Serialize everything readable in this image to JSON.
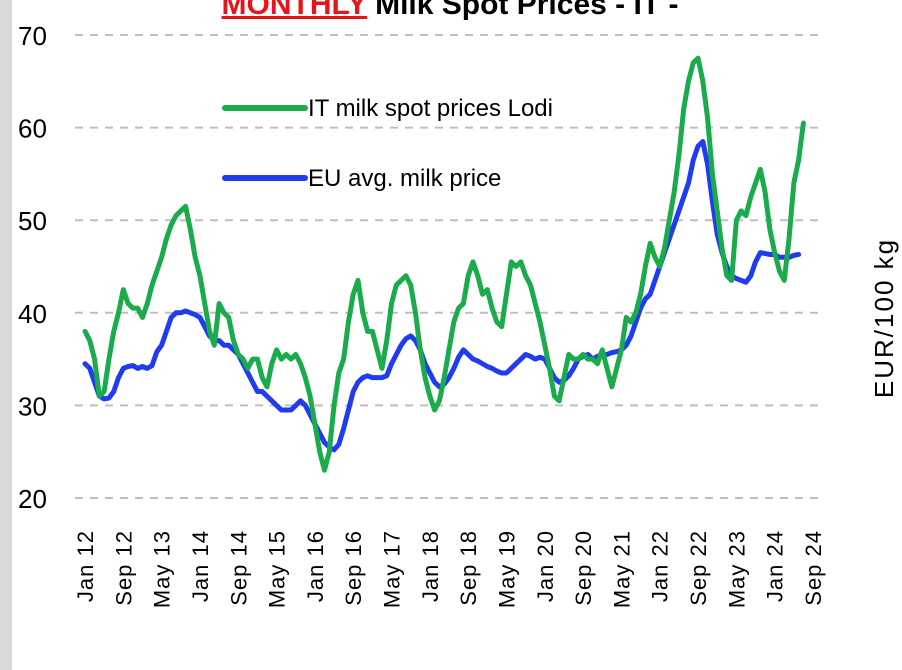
{
  "chart_data": {
    "type": "line",
    "title_highlight": "MONTHLY",
    "title": "Milk Spot Prices - IT -",
    "y_label": "EUR/100 kg",
    "ylim": [
      20,
      70
    ],
    "yticks": [
      20,
      30,
      40,
      50,
      60,
      70
    ],
    "grid": true,
    "categories": [
      "Jan 12",
      null,
      null,
      null,
      null,
      null,
      null,
      null,
      "Sep 12",
      null,
      null,
      null,
      null,
      null,
      null,
      null,
      "May 13",
      null,
      null,
      null,
      null,
      null,
      null,
      null,
      "Jan 14",
      null,
      null,
      null,
      null,
      null,
      null,
      null,
      "Sep 14",
      null,
      null,
      null,
      null,
      null,
      null,
      null,
      "May 15",
      null,
      null,
      null,
      null,
      null,
      null,
      null,
      "Jan 16",
      null,
      null,
      null,
      null,
      null,
      null,
      null,
      "Sep 16",
      null,
      null,
      null,
      null,
      null,
      null,
      null,
      "May 17",
      null,
      null,
      null,
      null,
      null,
      null,
      null,
      "Jan 18",
      null,
      null,
      null,
      null,
      null,
      null,
      null,
      "Sep 18",
      null,
      null,
      null,
      null,
      null,
      null,
      null,
      "May 19",
      null,
      null,
      null,
      null,
      null,
      null,
      null,
      "Jan 20",
      null,
      null,
      null,
      null,
      null,
      null,
      null,
      "Sep 20",
      null,
      null,
      null,
      null,
      null,
      null,
      null,
      "May 21",
      null,
      null,
      null,
      null,
      null,
      null,
      null,
      "Jan 22",
      null,
      null,
      null,
      null,
      null,
      null,
      null,
      "Sep 22",
      null,
      null,
      null,
      null,
      null,
      null,
      null,
      "May 23",
      null,
      null,
      null,
      null,
      null,
      null,
      null,
      "Jan 24",
      null,
      null,
      null,
      null,
      null,
      null,
      null,
      "Sep 24"
    ],
    "series": [
      {
        "name": "IT milk spot prices Lodi",
        "color": "#1aab4b",
        "values": [
          38,
          37,
          35,
          31,
          31.5,
          35,
          38,
          40,
          42.5,
          41,
          40.5,
          40.5,
          39.5,
          41,
          43,
          44.5,
          46,
          48,
          49.5,
          50.5,
          51,
          51.5,
          49,
          46,
          44,
          41,
          38,
          36.5,
          41,
          40,
          39.5,
          37,
          35.5,
          35,
          34,
          35,
          35,
          33,
          32,
          34.5,
          36,
          35,
          35.5,
          35,
          35.5,
          34.5,
          33,
          31,
          28,
          25,
          23,
          25,
          30,
          33.5,
          35,
          39,
          42,
          43.5,
          40,
          38,
          38,
          36,
          34,
          37,
          41,
          43,
          43.5,
          44,
          43,
          40,
          36,
          33,
          31,
          29.5,
          30.5,
          33,
          36,
          39,
          40.5,
          41,
          44,
          45.5,
          44,
          42,
          42.5,
          40.5,
          39,
          38.5,
          42,
          45.5,
          45,
          45.5,
          44,
          43,
          41,
          39,
          36.5,
          34,
          31,
          30.5,
          33,
          35.5,
          35,
          35,
          35.5,
          35,
          35,
          34.5,
          36,
          34,
          32,
          34,
          36,
          39.5,
          39,
          40,
          42,
          45,
          47.5,
          46,
          45,
          47,
          50,
          53,
          57,
          62,
          65,
          67,
          67.5,
          65,
          61,
          55,
          51,
          47,
          44,
          43.5,
          50,
          51,
          50.5,
          52.5,
          54,
          55.5,
          53,
          49,
          46.5,
          44.5,
          43.5,
          48,
          54,
          56.5,
          60.5,
          null,
          null
        ]
      },
      {
        "name": "EU avg. milk price",
        "color": "#1f3cf0",
        "values": [
          34.5,
          34,
          32.5,
          31,
          30.7,
          30.8,
          31.5,
          33,
          34,
          34.2,
          34.3,
          34,
          34.2,
          34,
          34.3,
          35.8,
          36.5,
          38,
          39.5,
          40,
          40,
          40.2,
          40,
          39.8,
          39.5,
          38.5,
          37.5,
          37,
          37,
          36.5,
          36.5,
          36,
          35.5,
          34.5,
          33.5,
          32.5,
          31.5,
          31.5,
          31,
          30.5,
          30,
          29.5,
          29.5,
          29.5,
          30,
          30.5,
          30,
          29,
          28,
          27,
          26,
          25.5,
          25.2,
          25.8,
          27.5,
          29.5,
          31.5,
          32.5,
          33,
          33.2,
          33,
          33,
          33,
          33.2,
          34.5,
          35.5,
          36.5,
          37.2,
          37.5,
          37,
          36,
          34.5,
          33.5,
          32.5,
          32,
          32.3,
          33,
          34,
          35.2,
          36,
          35.5,
          35,
          34.8,
          34.5,
          34.2,
          34,
          33.7,
          33.5,
          33.5,
          34,
          34.5,
          35,
          35.5,
          35.3,
          35,
          35.2,
          35,
          34,
          33,
          32.5,
          32.7,
          33.2,
          34,
          35,
          35.3,
          35.5,
          35,
          35.3,
          35.5,
          35.5,
          35.7,
          35.8,
          36,
          36.5,
          37.5,
          39,
          40.5,
          41.5,
          42,
          43.5,
          45,
          46.5,
          48,
          49.5,
          51,
          52.5,
          54,
          56.5,
          58,
          58.5,
          56,
          52,
          48.5,
          46.5,
          45,
          44,
          43.7,
          43.5,
          43.3,
          44,
          45.5,
          46.5,
          46.4,
          46.3,
          46.3,
          46,
          46,
          46,
          46.2,
          46.3,
          null,
          null,
          null
        ]
      }
    ]
  }
}
